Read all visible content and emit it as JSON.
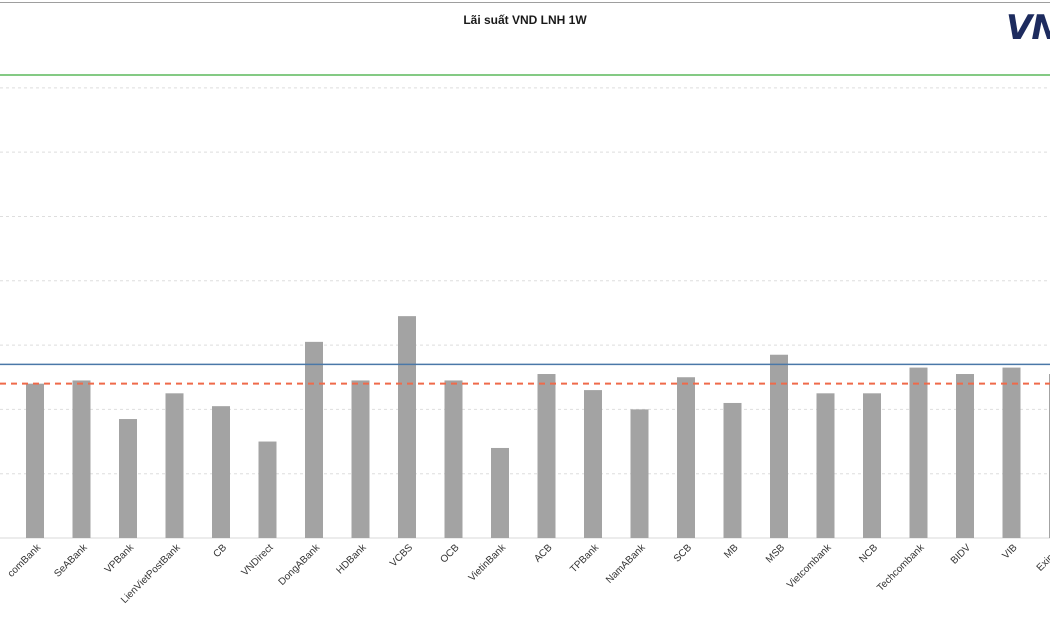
{
  "chart_data": {
    "type": "bar",
    "title": "Lãi suất VND LNH 1W",
    "categories": [
      "Sacombank",
      "SeABank",
      "VPBank",
      "LienVietPostBank",
      "CB",
      "VNDirect",
      "DongABank",
      "HDBank",
      "VCBS",
      "OCB",
      "VietinBank",
      "ACB",
      "TPBank",
      "NamABank",
      "SCB",
      "MB",
      "MSB",
      "Vietcombank",
      "NCB",
      "Techcombank",
      "BIDV",
      "VIB",
      "Eximbank"
    ],
    "category_labels": [
      "comBank",
      "SeABank",
      "VPBank",
      "LienVietPostBank",
      "CB",
      "VNDirect",
      "DongABank",
      "HDBank",
      "VCBS",
      "OCB",
      "VietinBank",
      "ACB",
      "TPBank",
      "NamABank",
      "SCB",
      "MB",
      "MSB",
      "Vietcombank",
      "NCB",
      "Techcombank",
      "BIDV",
      "VIB",
      "Eximba"
    ],
    "values": [
      2.4,
      2.45,
      1.85,
      2.25,
      2.05,
      1.5,
      3.05,
      2.45,
      3.45,
      2.45,
      1.4,
      2.55,
      2.3,
      2.0,
      2.5,
      2.1,
      2.85,
      2.25,
      2.25,
      2.65,
      2.55,
      2.65,
      2.55
    ],
    "ylim": [
      0,
      7.2
    ],
    "y_gridlines": [
      1,
      2,
      3,
      4,
      5,
      6,
      7
    ],
    "grid": true,
    "reference_lines": [
      {
        "value": 7.2,
        "color": "#5cb85c",
        "style": "solid"
      },
      {
        "value": 2.7,
        "color": "#4a78a8",
        "style": "solid"
      },
      {
        "value": 2.4,
        "color": "#ef6a4a",
        "style": "dashed"
      }
    ],
    "bar_color": "#a3a3a3"
  },
  "logo": {
    "text": "VN"
  }
}
